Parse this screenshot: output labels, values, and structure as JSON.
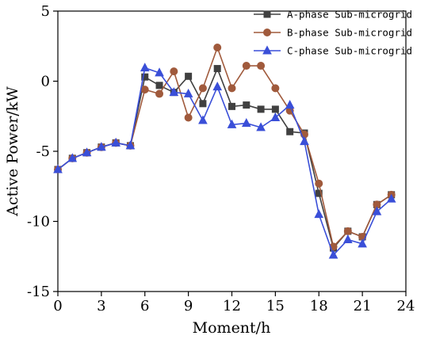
{
  "chart_data": {
    "type": "line",
    "xlabel": "Moment/h",
    "ylabel": "Active Power/kW",
    "xlim": [
      0,
      24
    ],
    "ylim": [
      -15,
      5
    ],
    "xticks": [
      0,
      3,
      6,
      9,
      12,
      15,
      18,
      21,
      24
    ],
    "yticks": [
      -15,
      -10,
      -5,
      0,
      5
    ],
    "grid": false,
    "legend_position": "top-right",
    "x": [
      0,
      1,
      2,
      3,
      4,
      5,
      6,
      7,
      8,
      9,
      10,
      11,
      12,
      13,
      14,
      15,
      16,
      17,
      18,
      19,
      20,
      21,
      22,
      23
    ],
    "series": [
      {
        "name": "A-phase Sub-microgrid",
        "color": "#404040",
        "marker": "square",
        "values": [
          -6.3,
          -5.5,
          -5.1,
          -4.7,
          -4.4,
          -4.6,
          0.3,
          -0.3,
          -0.8,
          0.35,
          -1.6,
          0.9,
          -1.8,
          -1.7,
          -2.0,
          -2.0,
          -3.6,
          -3.7,
          -8.0,
          -11.9,
          -10.7,
          -11.1,
          -8.8,
          -8.1
        ]
      },
      {
        "name": "B-phase Sub-microgrid",
        "color": "#a05a3c",
        "marker": "circle",
        "values": [
          -6.3,
          -5.5,
          -5.1,
          -4.7,
          -4.4,
          -4.6,
          -0.6,
          -0.9,
          0.7,
          -2.6,
          -0.5,
          2.4,
          -0.5,
          1.1,
          1.1,
          -0.5,
          -2.1,
          -3.8,
          -7.3,
          -11.8,
          -10.7,
          -11.1,
          -8.8,
          -8.1
        ]
      },
      {
        "name": "C-phase Sub-microgrid",
        "color": "#3a4fd8",
        "marker": "triangle",
        "values": [
          -6.3,
          -5.5,
          -5.1,
          -4.7,
          -4.4,
          -4.6,
          0.95,
          0.6,
          -0.8,
          -0.9,
          -2.8,
          -0.4,
          -3.1,
          -3.0,
          -3.3,
          -2.6,
          -1.7,
          -4.3,
          -9.5,
          -12.4,
          -11.3,
          -11.6,
          -9.3,
          -8.4
        ]
      }
    ]
  }
}
